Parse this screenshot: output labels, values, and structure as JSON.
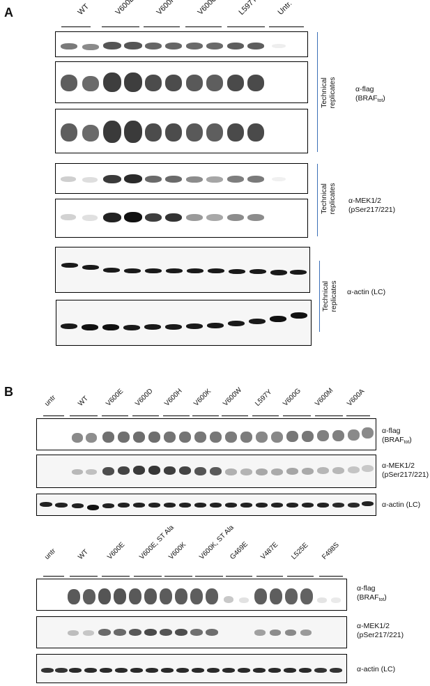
{
  "panel_a": {
    "letter": "A",
    "lanes": [
      "WT",
      "V600E",
      "V600H",
      "V600G",
      "L597Y",
      "Untr."
    ],
    "technical": [
      "Technical",
      "replicates"
    ],
    "antibodies": {
      "flag_main": "α-flag",
      "flag_sub_prefix": "(BRAF",
      "flag_sub_index": "tot",
      "flag_sub_suffix": ")",
      "mek_main": "α-MEK1/2",
      "mek_sub": "(pSer217/221)",
      "actin": "α-actin (LC)"
    }
  },
  "panel_b": {
    "letter": "B",
    "lanes_top": [
      "untr",
      "WT",
      "V600E",
      "V600D",
      "V600H",
      "V600K",
      "V600W",
      "L597Y",
      "V600G",
      "V600M",
      "V600A"
    ],
    "lanes_bottom": [
      "untr",
      "WT",
      "V600E",
      "V600E, ST Ala",
      "V600K",
      "V600K, ST Ala",
      "G469E",
      "V487E",
      "L525E",
      "F498S"
    ],
    "antibodies": {
      "flag_main": "α-flag",
      "flag_sub_prefix": "(BRAF",
      "flag_sub_index": "tot",
      "flag_sub_suffix": ")",
      "mek_main": "α-MEK1/2",
      "mek_sub": "(pSer217/221)",
      "actin": "α-actin (LC)"
    }
  }
}
